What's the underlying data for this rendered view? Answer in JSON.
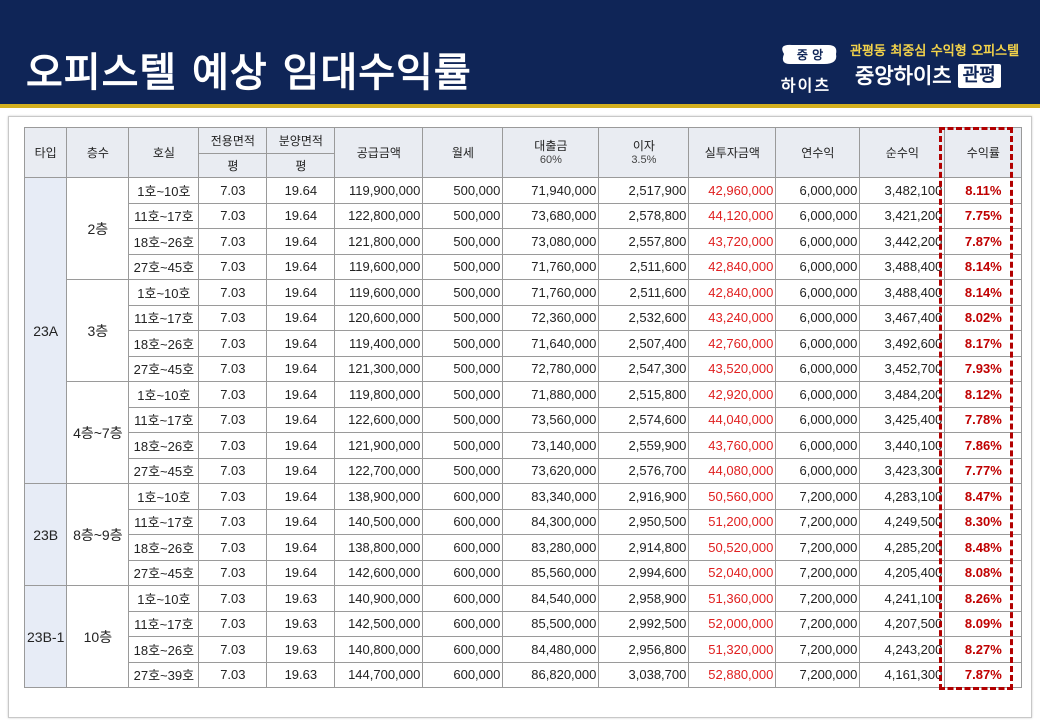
{
  "header": {
    "title": "오피스텔 예상 임대수익률",
    "logo_badge": "중 앙",
    "logo_text": "하이츠",
    "tagline": "관평동 최중심 수익형 오피스텔",
    "brand": "중앙하이츠",
    "brand_badge": "관평"
  },
  "table": {
    "columns": {
      "type": "타입",
      "floor": "층수",
      "unit": "호실",
      "exclusive_area": "전용면적",
      "sale_area": "분양면적",
      "pyeong1": "평",
      "pyeong2": "평",
      "supply_price": "공급금액",
      "monthly_rent": "월세",
      "loan": "대출금",
      "loan_sub": "60%",
      "interest": "이자",
      "interest_sub": "3.5%",
      "actual_investment": "실투자금액",
      "annual_income": "연수익",
      "net_income": "순수익",
      "yield": "수익률"
    },
    "groups": [
      {
        "type": "23A",
        "floors": [
          {
            "floor": "2층",
            "rows": [
              [
                "1호~10호",
                "7.03",
                "19.64",
                "119,900,000",
                "500,000",
                "71,940,000",
                "2,517,900",
                "42,960,000",
                "6,000,000",
                "3,482,100",
                "8.11%"
              ],
              [
                "11호~17호",
                "7.03",
                "19.64",
                "122,800,000",
                "500,000",
                "73,680,000",
                "2,578,800",
                "44,120,000",
                "6,000,000",
                "3,421,200",
                "7.75%"
              ],
              [
                "18호~26호",
                "7.03",
                "19.64",
                "121,800,000",
                "500,000",
                "73,080,000",
                "2,557,800",
                "43,720,000",
                "6,000,000",
                "3,442,200",
                "7.87%"
              ],
              [
                "27호~45호",
                "7.03",
                "19.64",
                "119,600,000",
                "500,000",
                "71,760,000",
                "2,511,600",
                "42,840,000",
                "6,000,000",
                "3,488,400",
                "8.14%"
              ]
            ]
          },
          {
            "floor": "3층",
            "rows": [
              [
                "1호~10호",
                "7.03",
                "19.64",
                "119,600,000",
                "500,000",
                "71,760,000",
                "2,511,600",
                "42,840,000",
                "6,000,000",
                "3,488,400",
                "8.14%"
              ],
              [
                "11호~17호",
                "7.03",
                "19.64",
                "120,600,000",
                "500,000",
                "72,360,000",
                "2,532,600",
                "43,240,000",
                "6,000,000",
                "3,467,400",
                "8.02%"
              ],
              [
                "18호~26호",
                "7.03",
                "19.64",
                "119,400,000",
                "500,000",
                "71,640,000",
                "2,507,400",
                "42,760,000",
                "6,000,000",
                "3,492,600",
                "8.17%"
              ],
              [
                "27호~45호",
                "7.03",
                "19.64",
                "121,300,000",
                "500,000",
                "72,780,000",
                "2,547,300",
                "43,520,000",
                "6,000,000",
                "3,452,700",
                "7.93%"
              ]
            ]
          },
          {
            "floor": "4층~7층",
            "rows": [
              [
                "1호~10호",
                "7.03",
                "19.64",
                "119,800,000",
                "500,000",
                "71,880,000",
                "2,515,800",
                "42,920,000",
                "6,000,000",
                "3,484,200",
                "8.12%"
              ],
              [
                "11호~17호",
                "7.03",
                "19.64",
                "122,600,000",
                "500,000",
                "73,560,000",
                "2,574,600",
                "44,040,000",
                "6,000,000",
                "3,425,400",
                "7.78%"
              ],
              [
                "18호~26호",
                "7.03",
                "19.64",
                "121,900,000",
                "500,000",
                "73,140,000",
                "2,559,900",
                "43,760,000",
                "6,000,000",
                "3,440,100",
                "7.86%"
              ],
              [
                "27호~45호",
                "7.03",
                "19.64",
                "122,700,000",
                "500,000",
                "73,620,000",
                "2,576,700",
                "44,080,000",
                "6,000,000",
                "3,423,300",
                "7.77%"
              ]
            ]
          }
        ]
      },
      {
        "type": "23B",
        "floors": [
          {
            "floor": "8층~9층",
            "rows": [
              [
                "1호~10호",
                "7.03",
                "19.64",
                "138,900,000",
                "600,000",
                "83,340,000",
                "2,916,900",
                "50,560,000",
                "7,200,000",
                "4,283,100",
                "8.47%"
              ],
              [
                "11호~17호",
                "7.03",
                "19.64",
                "140,500,000",
                "600,000",
                "84,300,000",
                "2,950,500",
                "51,200,000",
                "7,200,000",
                "4,249,500",
                "8.30%"
              ],
              [
                "18호~26호",
                "7.03",
                "19.64",
                "138,800,000",
                "600,000",
                "83,280,000",
                "2,914,800",
                "50,520,000",
                "7,200,000",
                "4,285,200",
                "8.48%"
              ],
              [
                "27호~45호",
                "7.03",
                "19.64",
                "142,600,000",
                "600,000",
                "85,560,000",
                "2,994,600",
                "52,040,000",
                "7,200,000",
                "4,205,400",
                "8.08%"
              ]
            ]
          }
        ]
      },
      {
        "type": "23B-1",
        "floors": [
          {
            "floor": "10층",
            "rows": [
              [
                "1호~10호",
                "7.03",
                "19.63",
                "140,900,000",
                "600,000",
                "84,540,000",
                "2,958,900",
                "51,360,000",
                "7,200,000",
                "4,241,100",
                "8.26%"
              ],
              [
                "11호~17호",
                "7.03",
                "19.63",
                "142,500,000",
                "600,000",
                "85,500,000",
                "2,992,500",
                "52,000,000",
                "7,200,000",
                "4,207,500",
                "8.09%"
              ],
              [
                "18호~26호",
                "7.03",
                "19.63",
                "140,800,000",
                "600,000",
                "84,480,000",
                "2,956,800",
                "51,320,000",
                "7,200,000",
                "4,243,200",
                "8.27%"
              ],
              [
                "27호~39호",
                "7.03",
                "19.63",
                "144,700,000",
                "600,000",
                "86,820,000",
                "3,038,700",
                "52,880,000",
                "7,200,000",
                "4,161,300",
                "7.87%"
              ]
            ]
          }
        ]
      }
    ]
  },
  "colors": {
    "header_bg": "#0f2557",
    "gold_line": "#d4b01e",
    "investment_red": "#e01f1f",
    "yield_red": "#c00000",
    "header_cell_bg": "#e9ecf2",
    "type_cell_bg": "#e7ecf6"
  }
}
